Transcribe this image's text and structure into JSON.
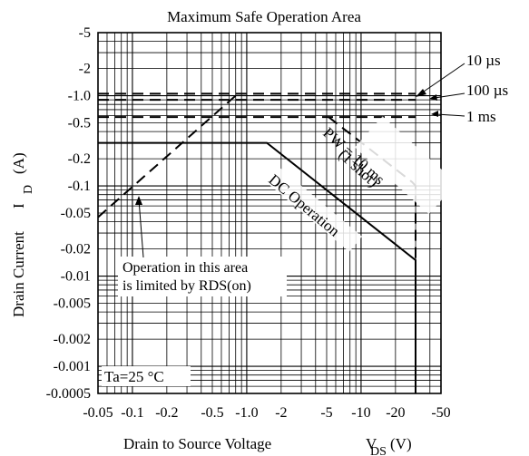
{
  "chart_data": {
    "type": "line",
    "title": "Maximum Safe Operation Area",
    "xlabel_main": "Drain to Source Voltage",
    "xlabel_symbol": "V",
    "xlabel_sub": "DS",
    "xlabel_unit": "(V)",
    "ylabel_main": "Drain Current",
    "ylabel_symbol": "I",
    "ylabel_sub": "D",
    "ylabel_unit": "(A)",
    "x_scale": "log",
    "y_scale": "log",
    "xlim": [
      0.05,
      50
    ],
    "ylim": [
      0.0005,
      5
    ],
    "grid": true,
    "x_ticks": [
      {
        "v": 0.05,
        "label": "-0.05"
      },
      {
        "v": 0.1,
        "label": "-0.1"
      },
      {
        "v": 0.2,
        "label": "-0.2"
      },
      {
        "v": 0.5,
        "label": "-0.5"
      },
      {
        "v": 1,
        "label": "-1.0"
      },
      {
        "v": 2,
        "label": "-2"
      },
      {
        "v": 5,
        "label": "-5"
      },
      {
        "v": 10,
        "label": "-10"
      },
      {
        "v": 20,
        "label": "-20"
      },
      {
        "v": 50,
        "label": "-50"
      }
    ],
    "y_ticks": [
      {
        "v": 5,
        "label": "-5"
      },
      {
        "v": 2,
        "label": "-2"
      },
      {
        "v": 1,
        "label": "-1.0"
      },
      {
        "v": 0.5,
        "label": "-0.5"
      },
      {
        "v": 0.2,
        "label": "-0.2"
      },
      {
        "v": 0.1,
        "label": "-0.1"
      },
      {
        "v": 0.05,
        "label": "-0.05"
      },
      {
        "v": 0.02,
        "label": "-0.02"
      },
      {
        "v": 0.01,
        "label": "-0.01"
      },
      {
        "v": 0.005,
        "label": "-0.005"
      },
      {
        "v": 0.002,
        "label": "-0.002"
      },
      {
        "v": 0.001,
        "label": "-0.001"
      },
      {
        "v": 0.0005,
        "label": "-0.0005"
      }
    ],
    "series": [
      {
        "key": "rds",
        "style": "dashed",
        "points": [
          [
            0.05,
            0.045
          ],
          [
            0.8,
            1.0
          ]
        ]
      },
      {
        "key": "10us",
        "style": "dashed",
        "points": [
          [
            0.05,
            1.05
          ],
          [
            30,
            1.05
          ]
        ]
      },
      {
        "key": "100us",
        "style": "dashed",
        "points": [
          [
            0.05,
            0.9
          ],
          [
            30,
            0.9
          ]
        ]
      },
      {
        "key": "1ms",
        "style": "dashed",
        "points": [
          [
            0.05,
            0.58
          ],
          [
            30,
            0.58
          ]
        ]
      },
      {
        "key": "pw10ms",
        "style": "dashed",
        "points": [
          [
            5.2,
            0.58
          ],
          [
            28,
            0.11
          ],
          [
            30,
            0.1
          ],
          [
            30,
            0.0005
          ]
        ]
      },
      {
        "key": "dc",
        "style": "solid",
        "points": [
          [
            0.05,
            0.3
          ],
          [
            1.5,
            0.3
          ],
          [
            30,
            0.015
          ],
          [
            30,
            0.0005
          ]
        ]
      }
    ],
    "annotations": {
      "label_10us": "10 µs",
      "label_100us": "100 µs",
      "label_1ms": "1 ms",
      "pw_line1": "PW = 10 ms",
      "pw_line2": "(1 shot)",
      "dc": "DC Operation",
      "rds_line1": "Operation in this area",
      "rds_line2": "is limited by RDS(on)",
      "ta": "Ta=25 °C"
    }
  }
}
